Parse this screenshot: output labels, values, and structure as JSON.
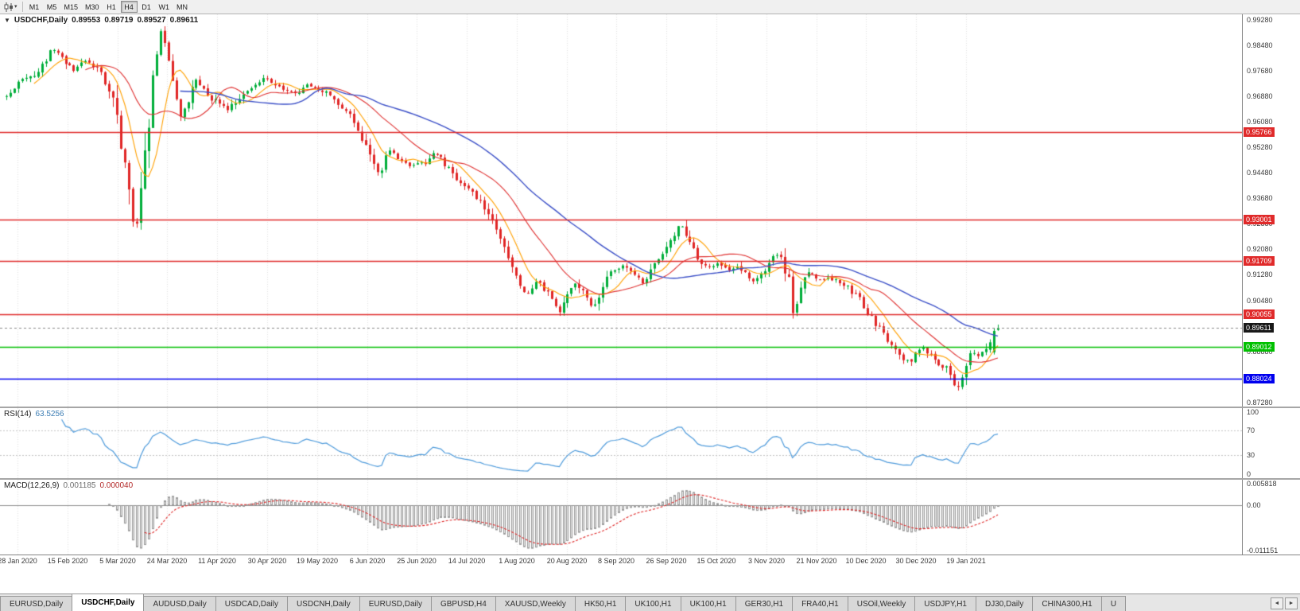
{
  "toolbar": {
    "timeframes": [
      "M1",
      "M5",
      "M15",
      "M30",
      "H1",
      "H4",
      "D1",
      "W1",
      "MN"
    ],
    "active_timeframe": "H4"
  },
  "icons": {
    "caret": "▾",
    "collapse": "▼",
    "tab_prev": "◄",
    "tab_next": "►"
  },
  "chart": {
    "symbol_title": "USDCHF,Daily",
    "ohlc": {
      "open": "0.89553",
      "high": "0.89719",
      "low": "0.89527",
      "close": "0.89611"
    }
  },
  "rsi_display": {
    "title": "RSI(14)",
    "value": "63.5256"
  },
  "macd_display": {
    "title": "MACD(12,26,9)",
    "value1": "0.001185",
    "value2": "0.000040"
  },
  "chart_data": {
    "type": "candlestick",
    "symbol": "USDCHF",
    "timeframe": "Daily",
    "num_candles": 252,
    "y_axis": {
      "min": 0.8715,
      "max": 0.9945,
      "ticks": [
        "0.99280",
        "0.98480",
        "0.97680",
        "0.96880",
        "0.96080",
        "0.95280",
        "0.94480",
        "0.93680",
        "0.92880",
        "0.92080",
        "0.91280",
        "0.90480",
        "0.89680",
        "0.88880",
        "0.88080",
        "0.87280"
      ]
    },
    "x_labels": [
      "28 Jan 2020",
      "15 Feb 2020",
      "5 Mar 2020",
      "24 Mar 2020",
      "11 Apr 2020",
      "30 Apr 2020",
      "19 May 2020",
      "6 Jun 2020",
      "25 Jun 2020",
      "14 Jul 2020",
      "1 Aug 2020",
      "20 Aug 2020",
      "8 Sep 2020",
      "26 Sep 2020",
      "15 Oct 2020",
      "3 Nov 2020",
      "21 Nov 2020",
      "10 Dec 2020",
      "30 Dec 2020",
      "19 Jan 2021"
    ],
    "levels": [
      {
        "label": "0.95766",
        "price": 0.95766,
        "color": "#e02a2a"
      },
      {
        "label": "0.93001",
        "price": 0.93001,
        "color": "#e02a2a"
      },
      {
        "label": "0.91709",
        "price": 0.91709,
        "color": "#e02a2a"
      },
      {
        "label": "0.90055",
        "price": 0.90055,
        "color": "#e02a2a"
      },
      {
        "label": "0.89012",
        "price": 0.89012,
        "color": "#00c000"
      },
      {
        "label": "0.88024",
        "price": 0.88024,
        "color": "#0000ee"
      }
    ],
    "current_price": {
      "label": "0.89611",
      "price": 0.89611,
      "chip_color": "#181818"
    },
    "price_path": [
      [
        0.0,
        0.969
      ],
      [
        0.012,
        0.9728
      ],
      [
        0.03,
        0.976
      ],
      [
        0.042,
        0.9818
      ],
      [
        0.05,
        0.9838
      ],
      [
        0.058,
        0.979
      ],
      [
        0.068,
        0.9768
      ],
      [
        0.08,
        0.9802
      ],
      [
        0.092,
        0.9772
      ],
      [
        0.105,
        0.9705
      ],
      [
        0.112,
        0.9615
      ],
      [
        0.118,
        0.95
      ],
      [
        0.124,
        0.94
      ],
      [
        0.13,
        0.924
      ],
      [
        0.136,
        0.939
      ],
      [
        0.142,
        0.956
      ],
      [
        0.148,
        0.977
      ],
      [
        0.154,
        0.99
      ],
      [
        0.16,
        0.9835
      ],
      [
        0.168,
        0.9705
      ],
      [
        0.176,
        0.9625
      ],
      [
        0.184,
        0.968
      ],
      [
        0.192,
        0.9745
      ],
      [
        0.202,
        0.97
      ],
      [
        0.212,
        0.9668
      ],
      [
        0.224,
        0.9645
      ],
      [
        0.236,
        0.9692
      ],
      [
        0.25,
        0.9722
      ],
      [
        0.263,
        0.9745
      ],
      [
        0.276,
        0.9718
      ],
      [
        0.29,
        0.9698
      ],
      [
        0.304,
        0.9722
      ],
      [
        0.316,
        0.9712
      ],
      [
        0.33,
        0.9678
      ],
      [
        0.344,
        0.9638
      ],
      [
        0.358,
        0.9558
      ],
      [
        0.368,
        0.9498
      ],
      [
        0.376,
        0.9435
      ],
      [
        0.386,
        0.9525
      ],
      [
        0.396,
        0.9488
      ],
      [
        0.408,
        0.9465
      ],
      [
        0.421,
        0.9478
      ],
      [
        0.432,
        0.9512
      ],
      [
        0.444,
        0.9468
      ],
      [
        0.456,
        0.9412
      ],
      [
        0.468,
        0.939
      ],
      [
        0.474,
        0.9372
      ],
      [
        0.484,
        0.9328
      ],
      [
        0.494,
        0.9262
      ],
      [
        0.504,
        0.9195
      ],
      [
        0.514,
        0.913
      ],
      [
        0.521,
        0.9085
      ],
      [
        0.527,
        0.9058
      ],
      [
        0.534,
        0.9108
      ],
      [
        0.542,
        0.9085
      ],
      [
        0.551,
        0.9048
      ],
      [
        0.558,
        0.9012
      ],
      [
        0.566,
        0.9072
      ],
      [
        0.572,
        0.9105
      ],
      [
        0.579,
        0.9086
      ],
      [
        0.586,
        0.9044
      ],
      [
        0.593,
        0.9026
      ],
      [
        0.601,
        0.9092
      ],
      [
        0.611,
        0.9136
      ],
      [
        0.621,
        0.916
      ],
      [
        0.632,
        0.9128
      ],
      [
        0.642,
        0.91
      ],
      [
        0.652,
        0.9155
      ],
      [
        0.663,
        0.9198
      ],
      [
        0.672,
        0.9252
      ],
      [
        0.68,
        0.9292
      ],
      [
        0.686,
        0.925
      ],
      [
        0.692,
        0.9205
      ],
      [
        0.699,
        0.9165
      ],
      [
        0.708,
        0.915
      ],
      [
        0.718,
        0.9166
      ],
      [
        0.728,
        0.9145
      ],
      [
        0.737,
        0.9152
      ],
      [
        0.746,
        0.9128
      ],
      [
        0.754,
        0.91
      ],
      [
        0.762,
        0.9136
      ],
      [
        0.77,
        0.917
      ],
      [
        0.778,
        0.9198
      ],
      [
        0.784,
        0.9152
      ],
      [
        0.789,
        0.9105
      ],
      [
        0.793,
        0.9012
      ],
      [
        0.799,
        0.9062
      ],
      [
        0.805,
        0.9125
      ],
      [
        0.812,
        0.914
      ],
      [
        0.82,
        0.9106
      ],
      [
        0.831,
        0.9118
      ],
      [
        0.842,
        0.9108
      ],
      [
        0.852,
        0.9078
      ],
      [
        0.861,
        0.9046
      ],
      [
        0.869,
        0.9008
      ],
      [
        0.877,
        0.8972
      ],
      [
        0.885,
        0.8934
      ],
      [
        0.895,
        0.8898
      ],
      [
        0.903,
        0.887
      ],
      [
        0.91,
        0.8852
      ],
      [
        0.918,
        0.8886
      ],
      [
        0.925,
        0.8902
      ],
      [
        0.932,
        0.887
      ],
      [
        0.94,
        0.885
      ],
      [
        0.947,
        0.8842
      ],
      [
        0.953,
        0.8806
      ],
      [
        0.958,
        0.8768
      ],
      [
        0.963,
        0.8802
      ],
      [
        0.968,
        0.8848
      ],
      [
        0.974,
        0.8888
      ],
      [
        0.98,
        0.887
      ],
      [
        0.986,
        0.8896
      ],
      [
        0.992,
        0.8916
      ],
      [
        1.0,
        0.8955
      ]
    ],
    "last_candles": [
      [
        0.8885,
        0.8962,
        0.8878,
        0.8952
      ],
      [
        0.89553,
        0.89719,
        0.89527,
        0.89611
      ]
    ],
    "indicators": {
      "moving_averages": [
        {
          "period": 8,
          "color": "#ffa000"
        },
        {
          "period": 21,
          "color": "#e03232"
        },
        {
          "period": 45,
          "color": "#3c50c8"
        }
      ],
      "rsi": {
        "period": 14,
        "current": 63.5256,
        "range": [
          0,
          100
        ],
        "guide_levels": [
          70,
          30
        ],
        "ticks": [
          "100",
          "70",
          "30",
          "0"
        ],
        "color": "#509cdc"
      },
      "macd": {
        "params": [
          12,
          26,
          9
        ],
        "current_macd": 0.001185,
        "current_signal": 4e-05,
        "range": [
          -0.0118,
          0.006
        ],
        "ticks": [
          "0.005818",
          "0.00",
          "-0.011151"
        ],
        "hist_fill": "#ececec",
        "hist_stroke": "#9a9a9a",
        "signal_color": "#e02a2a"
      }
    },
    "colors": {
      "up": "#00ae3a",
      "down": "#e02626",
      "grid": "#e2e2e2",
      "current_line": "#8a8a8a"
    }
  },
  "tabs": {
    "active_index": 1,
    "items": [
      "EURUSD,Daily",
      "USDCHF,Daily",
      "AUDUSD,Daily",
      "USDCAD,Daily",
      "USDCNH,Daily",
      "EURUSD,Daily",
      "GBPUSD,H4",
      "XAUUSD,Weekly",
      "HK50,H1",
      "UK100,H1",
      "UK100,H1",
      "GER30,H1",
      "FRA40,H1",
      "USOil,Weekly",
      "USDJPY,H1",
      "DJ30,Daily",
      "CHINA300,H1",
      "U"
    ]
  }
}
